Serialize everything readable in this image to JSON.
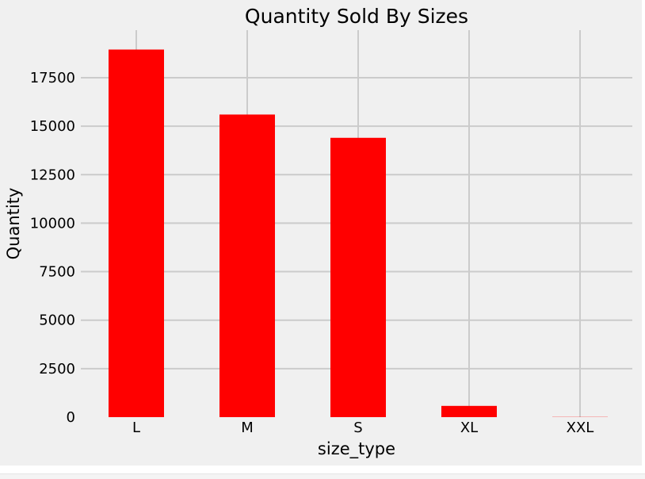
{
  "chart_data": {
    "type": "bar",
    "title": "Quantity Sold By Sizes",
    "xlabel": "size_type",
    "ylabel": "Quantity",
    "categories": [
      "L",
      "M",
      "S",
      "XL",
      "XXL"
    ],
    "values": [
      18950,
      15600,
      14400,
      580,
      10
    ],
    "yticks": [
      "0",
      "2500",
      "5000",
      "7500",
      "10000",
      "12500",
      "15000",
      "17500"
    ],
    "ylim": [
      0,
      19900
    ],
    "grid": true,
    "bar_color": "#ff0000",
    "background_color": "#f0f0f0"
  }
}
